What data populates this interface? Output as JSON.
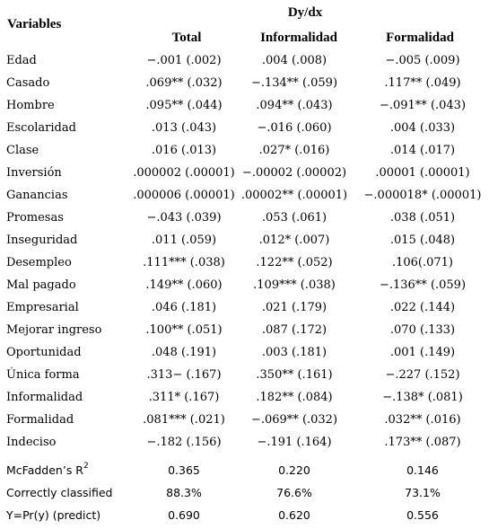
{
  "header": {
    "variables_label": "Variables",
    "group_label": "Dy/dx",
    "columns": [
      "Total",
      "Informalidad",
      "Formalidad"
    ]
  },
  "rows": [
    {
      "label": "Edad",
      "total": "−.001 (.002)",
      "informalidad": ".004 (.008)",
      "formalidad": "−.005 (.009)"
    },
    {
      "label": "Casado",
      "total": ".069** (.032)",
      "informalidad": "−.134** (.059)",
      "formalidad": ".117** (.049)"
    },
    {
      "label": "Hombre",
      "total": ".095** (.044)",
      "informalidad": ".094** (.043)",
      "formalidad": "−.091** (.043)"
    },
    {
      "label": "Escolaridad",
      "total": ".013 (.043)",
      "informalidad": "−.016 (.060)",
      "formalidad": ".004 (.033)"
    },
    {
      "label": "Clase",
      "total": ".016 (.013)",
      "informalidad": ".027* (.016)",
      "formalidad": ".014 (.017)"
    },
    {
      "label": "Inversión",
      "total": ".000002 (.00001)",
      "informalidad": "−.00002 (.00002)",
      "formalidad": ".00001 (.00001)"
    },
    {
      "label": "Ganancias",
      "total": ".000006 (.00001)",
      "informalidad": ".00002** (.00001)",
      "formalidad": "−.000018* (.00001)"
    },
    {
      "label": "Promesas",
      "total": "−.043 (.039)",
      "informalidad": ".053 (.061)",
      "formalidad": ".038 (.051)"
    },
    {
      "label": "Inseguridad",
      "total": ".011 (.059)",
      "informalidad": ".012* (.007)",
      "formalidad": ".015 (.048)"
    },
    {
      "label": "Desempleo",
      "total": ".111*** (.038)",
      "informalidad": ".122** (.052)",
      "formalidad": ".106(.071)"
    },
    {
      "label": "Mal pagado",
      "total": ".149** (.060)",
      "informalidad": ".109*** (.038)",
      "formalidad": "−.136** (.059)"
    },
    {
      "label": "Empresarial",
      "total": ".046 (.181)",
      "informalidad": ".021 (.179)",
      "formalidad": ".022 (.144)"
    },
    {
      "label": "Mejorar ingreso",
      "total": ".100** (.051)",
      "informalidad": ".087 (.172)",
      "formalidad": ".070 (.133)"
    },
    {
      "label": "Oportunidad",
      "total": ".048 (.191)",
      "informalidad": ".003 (.181)",
      "formalidad": ".001 (.149)"
    },
    {
      "label": "Única forma",
      "total": ".313− (.167)",
      "informalidad": ".350** (.161)",
      "formalidad": "−.227 (.152)"
    },
    {
      "label": "Informalidad",
      "total": ".311* (.167)",
      "informalidad": ".182** (.084)",
      "formalidad": "−.138* (.081)"
    },
    {
      "label": "Formalidad",
      "total": ".081*** (.021)",
      "informalidad": "−.069** (.032)",
      "formalidad": ".032** (.016)"
    },
    {
      "label": "Indeciso",
      "total": "−.182 (.156)",
      "informalidad": "−.191 (.164)",
      "formalidad": ".173** (.087)"
    }
  ],
  "stats": [
    {
      "label": "McFadden’s R",
      "label_sup": "2",
      "total": "0.365",
      "informalidad": "0.220",
      "formalidad": "0.146"
    },
    {
      "label": "Correctly classified",
      "label_sup": "",
      "total": "88.3%",
      "informalidad": "76.6%",
      "formalidad": "73.1%"
    },
    {
      "label": "Y=Pr(y) (predict)",
      "label_sup": "",
      "total": "0.690",
      "informalidad": "0.620",
      "formalidad": "0.556"
    }
  ]
}
